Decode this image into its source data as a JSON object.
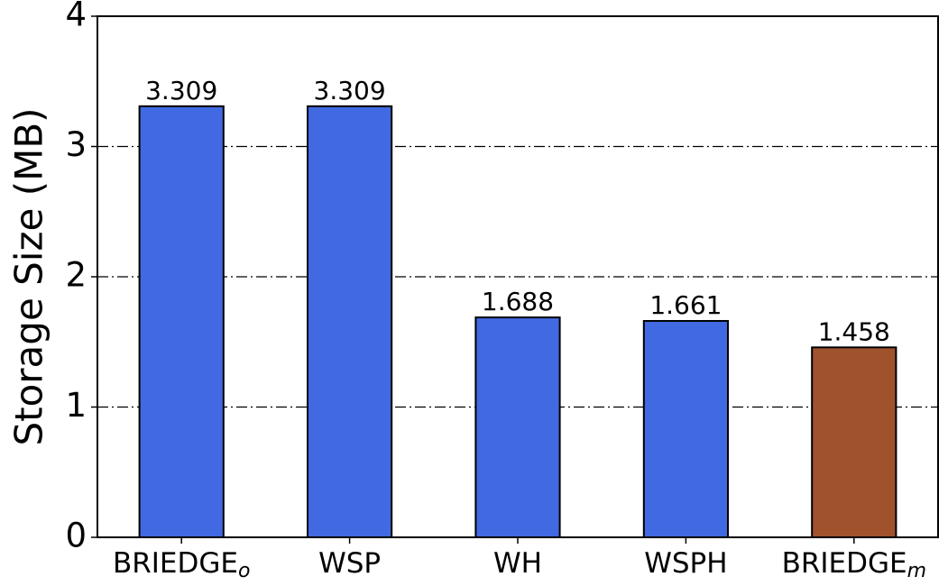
{
  "chart_data": {
    "type": "bar",
    "y_label": "Storage Size (MB)",
    "categories": [
      "BRIEDGE",
      "WSP",
      "WH",
      "WSPH",
      "BRIEDGE"
    ],
    "category_subscripts": [
      "o",
      null,
      null,
      null,
      "m"
    ],
    "values": [
      3.309,
      3.309,
      1.688,
      1.661,
      1.458
    ],
    "colors": [
      "#4169e1",
      "#4169e1",
      "#4169e1",
      "#4169e1",
      "#a0522d"
    ],
    "ylim": [
      0,
      4
    ],
    "yticks": [
      0,
      1,
      2,
      3,
      4
    ],
    "grid": true
  }
}
